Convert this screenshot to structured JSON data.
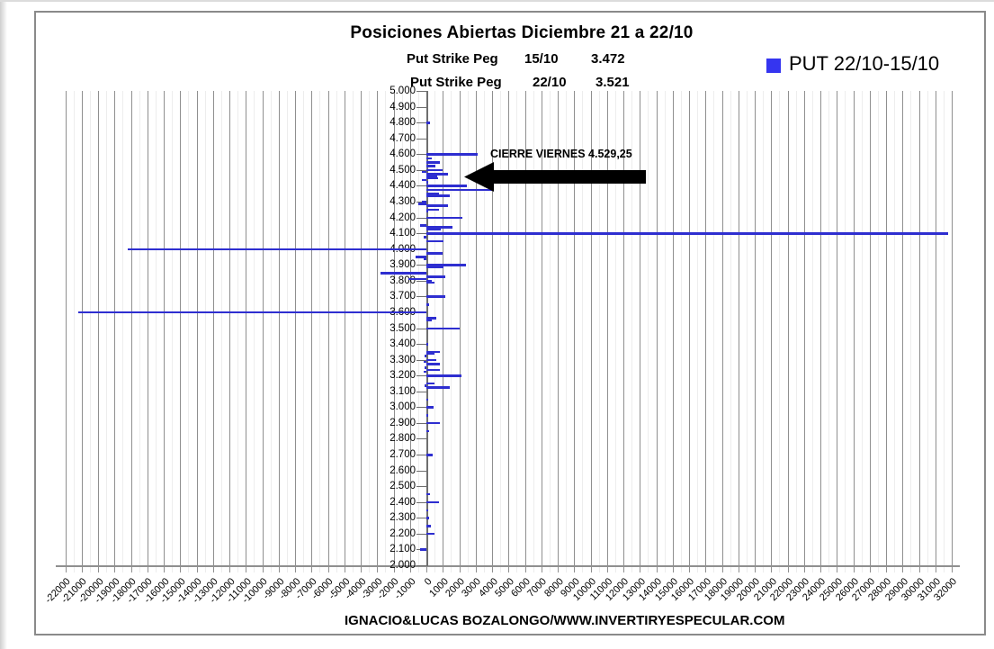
{
  "chart": {
    "title": "Posiciones Abiertas Diciembre 21 a 22/10",
    "peg_rows": [
      {
        "label": "Put Strike Peg",
        "date": "15/10",
        "value": "3.472"
      },
      {
        "label": "Put Strike Peg",
        "date": "22/10",
        "value": "3.521"
      }
    ],
    "legend": {
      "label": "PUT 22/10-15/10",
      "color": "#3535f0"
    },
    "annotation": {
      "text": "CIERRE VIERNES 4.529,25"
    },
    "footer": "IGNACIO&LUCAS BOZALONGO/WWW.INVERTIRYESPECULAR.COM"
  },
  "chart_data": {
    "type": "bar",
    "orientation": "horizontal",
    "title": "Posiciones Abiertas Diciembre 21 a 22/10",
    "subtitle": [
      "Put Strike Peg 15/10 3.472",
      "Put Strike Peg 22/10 3.521"
    ],
    "legend_entries": [
      "PUT 22/10-15/10"
    ],
    "legend_position": "top-right",
    "grid": true,
    "annotations": [
      {
        "text": "CIERRE VIERNES 4.529,25",
        "arrow": "points-left-at-strike",
        "strike": 4529.25
      }
    ],
    "x_axis": {
      "min": -22000,
      "max": 32000,
      "step": 1000,
      "tick_labels": [
        "-22000",
        "-21000",
        "-20000",
        "-19000",
        "-18000",
        "-17000",
        "-16000",
        "-15000",
        "-14000",
        "-13000",
        "-12000",
        "-11000",
        "-10000",
        "-9000",
        "-8000",
        "-7000",
        "-6000",
        "-5000",
        "-4000",
        "-3000",
        "-2000",
        "-1000",
        "0",
        "1000",
        "2000",
        "3000",
        "4000",
        "5000",
        "6000",
        "7000",
        "8000",
        "9000",
        "10000",
        "11000",
        "12000",
        "13000",
        "14000",
        "15000",
        "16000",
        "17000",
        "18000",
        "19000",
        "20000",
        "21000",
        "22000",
        "23000",
        "24000",
        "25000",
        "26000",
        "27000",
        "28000",
        "29000",
        "30000",
        "31000",
        "32000"
      ]
    },
    "y_axis": {
      "min": 2000,
      "max": 5000,
      "step": 100,
      "tick_labels": [
        "5.000",
        "4.900",
        "4.800",
        "4.700",
        "4.600",
        "4.500",
        "4.400",
        "4.300",
        "4.200",
        "4.100",
        "4.000",
        "3.900",
        "3.800",
        "3.700",
        "3.600",
        "3.500",
        "3.400",
        "3.300",
        "3.200",
        "3.100",
        "3.000",
        "2.900",
        "2.800",
        "2.700",
        "2.600",
        "2.500",
        "2.400",
        "2.300",
        "2.200",
        "2.100",
        "2.000"
      ]
    },
    "series": [
      {
        "name": "PUT 22/10-15/10",
        "color": "#2e2ed0",
        "points": [
          [
            4800,
            200
          ],
          [
            4600,
            3100
          ],
          [
            4575,
            350
          ],
          [
            4550,
            800
          ],
          [
            4525,
            550
          ],
          [
            4500,
            1000
          ],
          [
            4488,
            -300
          ],
          [
            4475,
            1300
          ],
          [
            4463,
            680
          ],
          [
            4450,
            700
          ],
          [
            4438,
            -270
          ],
          [
            4425,
            100
          ],
          [
            4400,
            2470
          ],
          [
            4375,
            4050
          ],
          [
            4350,
            770
          ],
          [
            4338,
            1420
          ],
          [
            4300,
            -250
          ],
          [
            4288,
            -500
          ],
          [
            4275,
            1330
          ],
          [
            4250,
            780
          ],
          [
            4238,
            100
          ],
          [
            4200,
            2200
          ],
          [
            4150,
            -400
          ],
          [
            4138,
            1600
          ],
          [
            4125,
            900
          ],
          [
            4100,
            31800
          ],
          [
            4075,
            -150
          ],
          [
            4050,
            1040
          ],
          [
            4000,
            -18200
          ],
          [
            3975,
            970
          ],
          [
            3950,
            -670
          ],
          [
            3938,
            -150
          ],
          [
            3900,
            2410
          ],
          [
            3888,
            1060
          ],
          [
            3850,
            -2800
          ],
          [
            3825,
            1150
          ],
          [
            3813,
            -1100
          ],
          [
            3800,
            330
          ],
          [
            3788,
            500
          ],
          [
            3700,
            1150
          ],
          [
            3650,
            150
          ],
          [
            3600,
            -21200
          ],
          [
            3563,
            600
          ],
          [
            3550,
            350
          ],
          [
            3500,
            2000
          ],
          [
            3400,
            100
          ],
          [
            3350,
            840
          ],
          [
            3338,
            480
          ],
          [
            3325,
            -120
          ],
          [
            3300,
            600
          ],
          [
            3288,
            -150
          ],
          [
            3275,
            840
          ],
          [
            3250,
            -130
          ],
          [
            3238,
            840
          ],
          [
            3225,
            -150
          ],
          [
            3200,
            2120
          ],
          [
            3150,
            480
          ],
          [
            3138,
            -120
          ],
          [
            3125,
            1400
          ],
          [
            3050,
            100
          ],
          [
            3000,
            460
          ],
          [
            2950,
            100
          ],
          [
            2900,
            840
          ],
          [
            2850,
            150
          ],
          [
            2700,
            400
          ],
          [
            2450,
            240
          ],
          [
            2400,
            750
          ],
          [
            2350,
            100
          ],
          [
            2300,
            180
          ],
          [
            2250,
            270
          ],
          [
            2200,
            510
          ],
          [
            2100,
            -400
          ]
        ]
      }
    ]
  }
}
